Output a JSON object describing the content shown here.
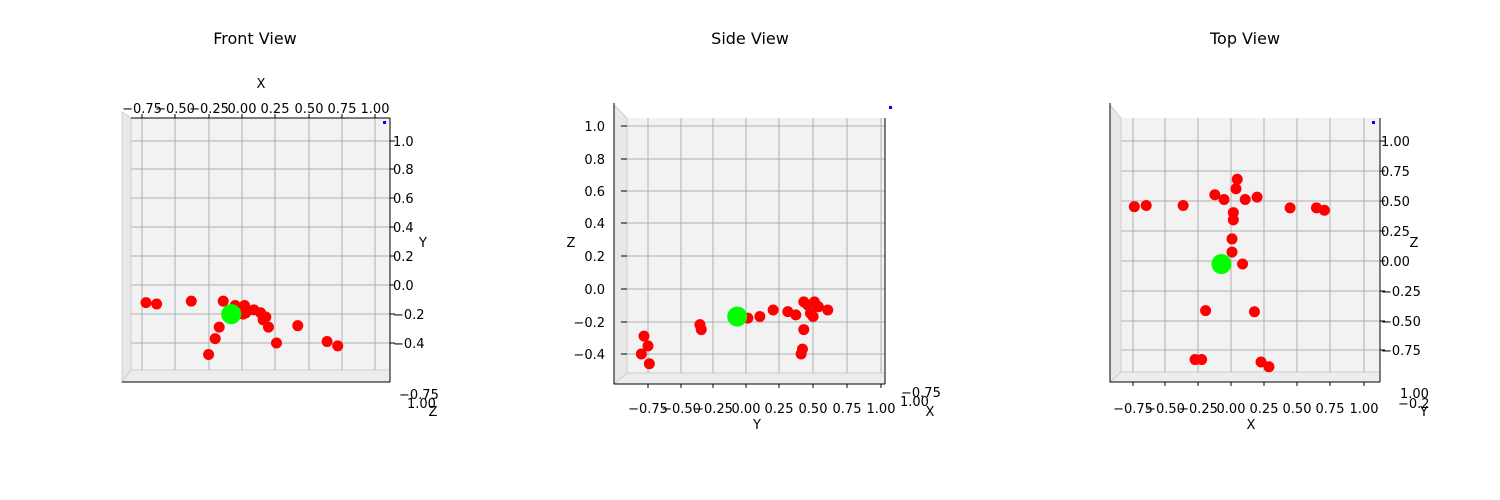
{
  "figure": {
    "marker_color": "#ff0000",
    "highlight_color": "#00ff00",
    "origin_marker_color": "#0000ff",
    "pane_color": "#f2f2f2",
    "grid_color": "#b0b0b0"
  },
  "chart_data": [
    {
      "type": "scatter",
      "title": "Front View",
      "xlabel": "X",
      "ylabel": "Y",
      "depth_label": "Z",
      "xticks": [
        "−0.75",
        "−0.50",
        "−0.25",
        "0.00",
        "0.25",
        "0.50",
        "0.75",
        "1.00"
      ],
      "yticks": [
        "1.0",
        "0.8",
        "0.6",
        "0.4",
        "0.2",
        "0.0",
        "−0.2",
        "−0.4"
      ],
      "depth_ticks": [
        "−0.75",
        "1.00"
      ],
      "xlim": [
        -0.8,
        1.05
      ],
      "ylim": [
        -0.5,
        1.05
      ],
      "points": [
        {
          "x": -0.72,
          "y": -0.12
        },
        {
          "x": -0.64,
          "y": -0.13
        },
        {
          "x": -0.38,
          "y": -0.11
        },
        {
          "x": -0.14,
          "y": -0.11
        },
        {
          "x": -0.05,
          "y": -0.14
        },
        {
          "x": 0.02,
          "y": -0.14
        },
        {
          "x": 0.09,
          "y": -0.17
        },
        {
          "x": 0.14,
          "y": -0.19
        },
        {
          "x": 0.03,
          "y": -0.19
        },
        {
          "x": 0.01,
          "y": -0.2
        },
        {
          "x": 0.18,
          "y": -0.22
        },
        {
          "x": 0.16,
          "y": -0.24
        },
        {
          "x": 0.2,
          "y": -0.29
        },
        {
          "x": 0.42,
          "y": -0.28
        },
        {
          "x": -0.17,
          "y": -0.29
        },
        {
          "x": -0.2,
          "y": -0.37
        },
        {
          "x": 0.26,
          "y": -0.4
        },
        {
          "x": 0.64,
          "y": -0.39
        },
        {
          "x": 0.72,
          "y": -0.42
        },
        {
          "x": -0.25,
          "y": -0.48
        }
      ],
      "highlight": {
        "x": -0.08,
        "y": -0.2
      },
      "origin_marker": {
        "x": 1.0,
        "y": 1.0
      }
    },
    {
      "type": "scatter",
      "title": "Side View",
      "xlabel": "Y",
      "ylabel": "Z",
      "depth_label": "X",
      "xticks": [
        "−0.75",
        "−0.50",
        "−0.25",
        "0.00",
        "0.25",
        "0.50",
        "0.75",
        "1.00"
      ],
      "yticks": [
        "1.0",
        "0.8",
        "0.6",
        "0.4",
        "0.2",
        "0.0",
        "−0.2",
        "−0.4"
      ],
      "depth_ticks": [
        "−0.75",
        "1.00"
      ],
      "xlim": [
        -0.9,
        1.05
      ],
      "ylim": [
        -0.55,
        1.05
      ],
      "points": [
        {
          "x": 0.42,
          "y": -0.08
        },
        {
          "x": 0.5,
          "y": -0.08
        },
        {
          "x": 0.45,
          "y": -0.1
        },
        {
          "x": 0.53,
          "y": -0.11
        },
        {
          "x": 0.6,
          "y": -0.13
        },
        {
          "x": 0.3,
          "y": -0.14
        },
        {
          "x": 0.19,
          "y": -0.13
        },
        {
          "x": 0.36,
          "y": -0.16
        },
        {
          "x": 0.47,
          "y": -0.15
        },
        {
          "x": 0.49,
          "y": -0.17
        },
        {
          "x": 0.09,
          "y": -0.17
        },
        {
          "x": 0.0,
          "y": -0.18
        },
        {
          "x": -0.36,
          "y": -0.22
        },
        {
          "x": -0.35,
          "y": -0.25
        },
        {
          "x": 0.42,
          "y": -0.25
        },
        {
          "x": -0.78,
          "y": -0.29
        },
        {
          "x": -0.75,
          "y": -0.35
        },
        {
          "x": -0.8,
          "y": -0.4
        },
        {
          "x": 0.41,
          "y": -0.37
        },
        {
          "x": 0.4,
          "y": -0.4
        },
        {
          "x": -0.74,
          "y": -0.46
        }
      ],
      "highlight": {
        "x": -0.08,
        "y": -0.17
      },
      "origin_marker": {
        "x": 1.0,
        "y": 1.0
      }
    },
    {
      "type": "scatter",
      "title": "Top View",
      "xlabel": "X",
      "ylabel": "Z",
      "depth_label": "Y",
      "xticks": [
        "−0.75",
        "−0.50",
        "−0.25",
        "0.00",
        "0.25",
        "0.50",
        "0.75",
        "1.00"
      ],
      "yticks": [
        "1.00",
        "0.75",
        "0.50",
        "0.25",
        "0.00",
        "−0.25",
        "−0.50",
        "−0.75"
      ],
      "depth_ticks": [
        "1.00",
        "−0.2"
      ],
      "xlim": [
        -0.8,
        1.05
      ],
      "ylim": [
        -0.95,
        1.05
      ],
      "points": [
        {
          "x": 0.04,
          "y": 0.68
        },
        {
          "x": 0.03,
          "y": 0.6
        },
        {
          "x": -0.13,
          "y": 0.55
        },
        {
          "x": -0.06,
          "y": 0.51
        },
        {
          "x": 0.1,
          "y": 0.51
        },
        {
          "x": 0.19,
          "y": 0.53
        },
        {
          "x": -0.74,
          "y": 0.45
        },
        {
          "x": -0.65,
          "y": 0.46
        },
        {
          "x": -0.37,
          "y": 0.46
        },
        {
          "x": 0.01,
          "y": 0.4
        },
        {
          "x": 0.01,
          "y": 0.34
        },
        {
          "x": 0.44,
          "y": 0.44
        },
        {
          "x": 0.64,
          "y": 0.44
        },
        {
          "x": 0.7,
          "y": 0.42
        },
        {
          "x": 0.0,
          "y": 0.18
        },
        {
          "x": 0.0,
          "y": 0.07
        },
        {
          "x": 0.08,
          "y": -0.03
        },
        {
          "x": -0.2,
          "y": -0.42
        },
        {
          "x": 0.17,
          "y": -0.43
        },
        {
          "x": -0.28,
          "y": -0.83
        },
        {
          "x": -0.23,
          "y": -0.83
        },
        {
          "x": 0.22,
          "y": -0.85
        },
        {
          "x": 0.28,
          "y": -0.89
        }
      ],
      "highlight": {
        "x": -0.08,
        "y": -0.03
      },
      "origin_marker": {
        "x": 1.0,
        "y": 1.0
      }
    }
  ]
}
